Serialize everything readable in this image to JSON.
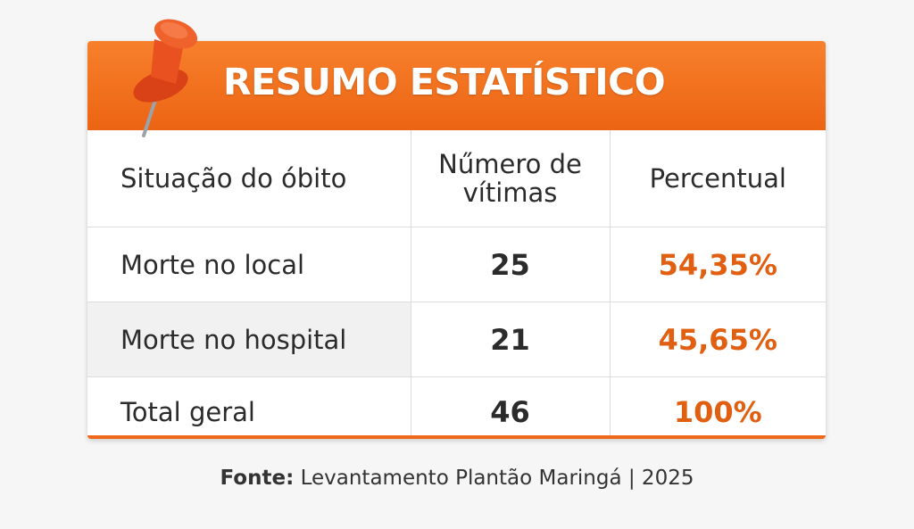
{
  "title": "RESUMO ESTATÍSTICO",
  "table": {
    "headers": [
      "Situação do óbito",
      "Nűmero de vítimas",
      "Percentual"
    ],
    "rows": [
      [
        "Morte no local",
        "25",
        "54,35%"
      ],
      [
        "Morte no hospital",
        "21",
        "45,65%"
      ],
      [
        "Total geral",
        "46",
        "100%"
      ]
    ]
  },
  "footer": {
    "label": "Fonte:",
    "text": "Levantamento Plantão Maringá | 2025"
  },
  "colors": {
    "accent": "#ee6a1a",
    "percent": "#e05f10"
  },
  "icons": {
    "pin": "pushpin-icon"
  }
}
